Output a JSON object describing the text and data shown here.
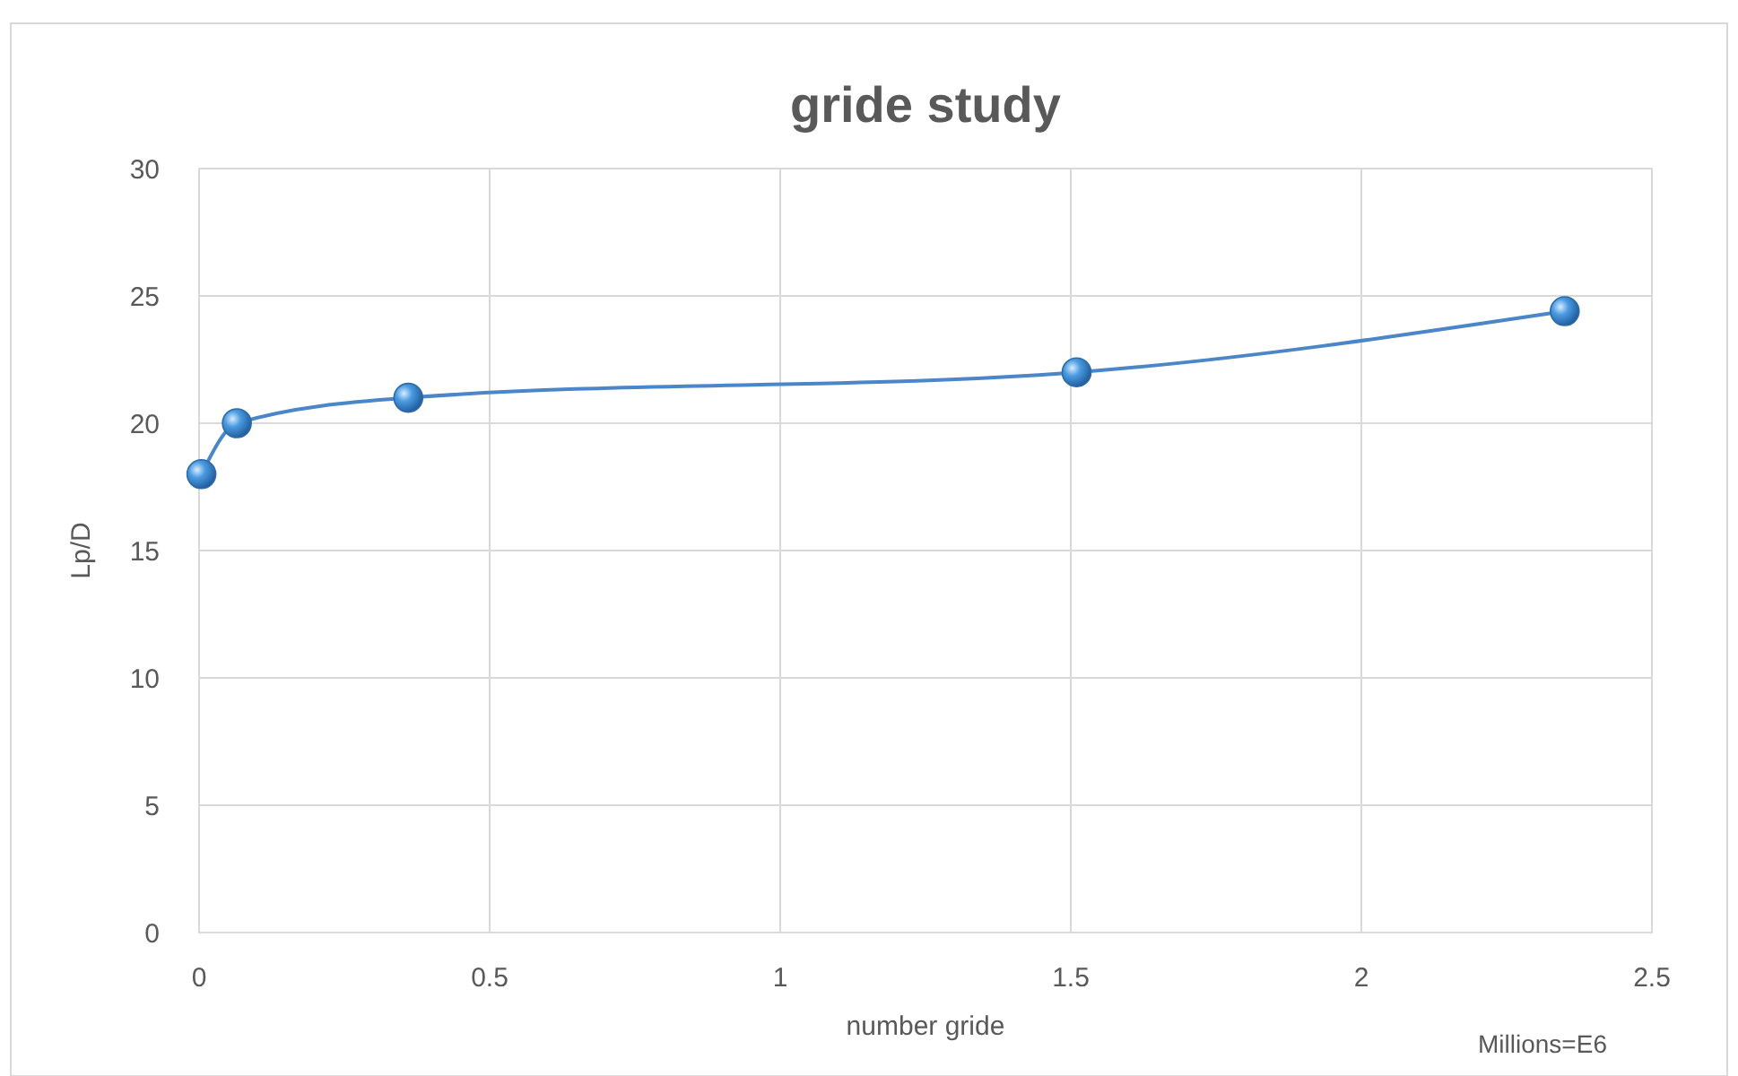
{
  "chart_data": {
    "type": "line",
    "title": "gride study",
    "xlabel": "number gride",
    "ylabel": "Lp/D",
    "annotations": [
      "Millions=E6"
    ],
    "x": [
      0.004,
      0.065,
      0.36,
      1.51,
      2.35
    ],
    "series": [
      {
        "color": "#4a86c8",
        "values": [
          18,
          20,
          21,
          22,
          24.4
        ]
      }
    ],
    "xlim": [
      0,
      2.5
    ],
    "xticks": [
      0,
      0.5,
      1,
      1.5,
      2,
      2.5
    ],
    "ylim": [
      0,
      30
    ],
    "yticks": [
      0,
      5,
      10,
      15,
      20,
      25,
      30
    ],
    "grid": true,
    "marker": "circle",
    "line_style": "solid"
  }
}
